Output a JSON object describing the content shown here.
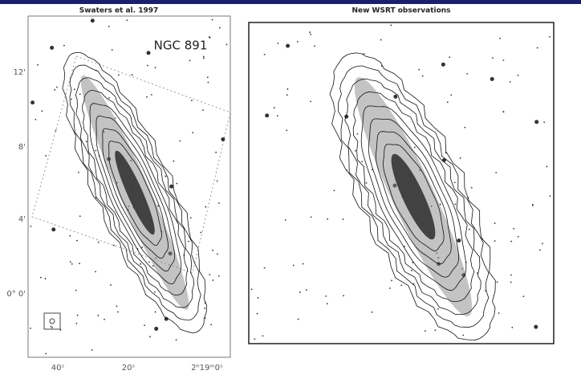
{
  "panels": [
    {
      "title": "Swaters et al. 1997",
      "label": "NGC 891",
      "y_ticks": [
        "12'",
        "8'",
        "4'",
        "0° 0'"
      ],
      "x_ticks": [
        "40ˢ",
        "20ˢ",
        "2ʰ19ᵐ0ˢ"
      ]
    },
    {
      "title": "New WSRT observations"
    }
  ]
}
